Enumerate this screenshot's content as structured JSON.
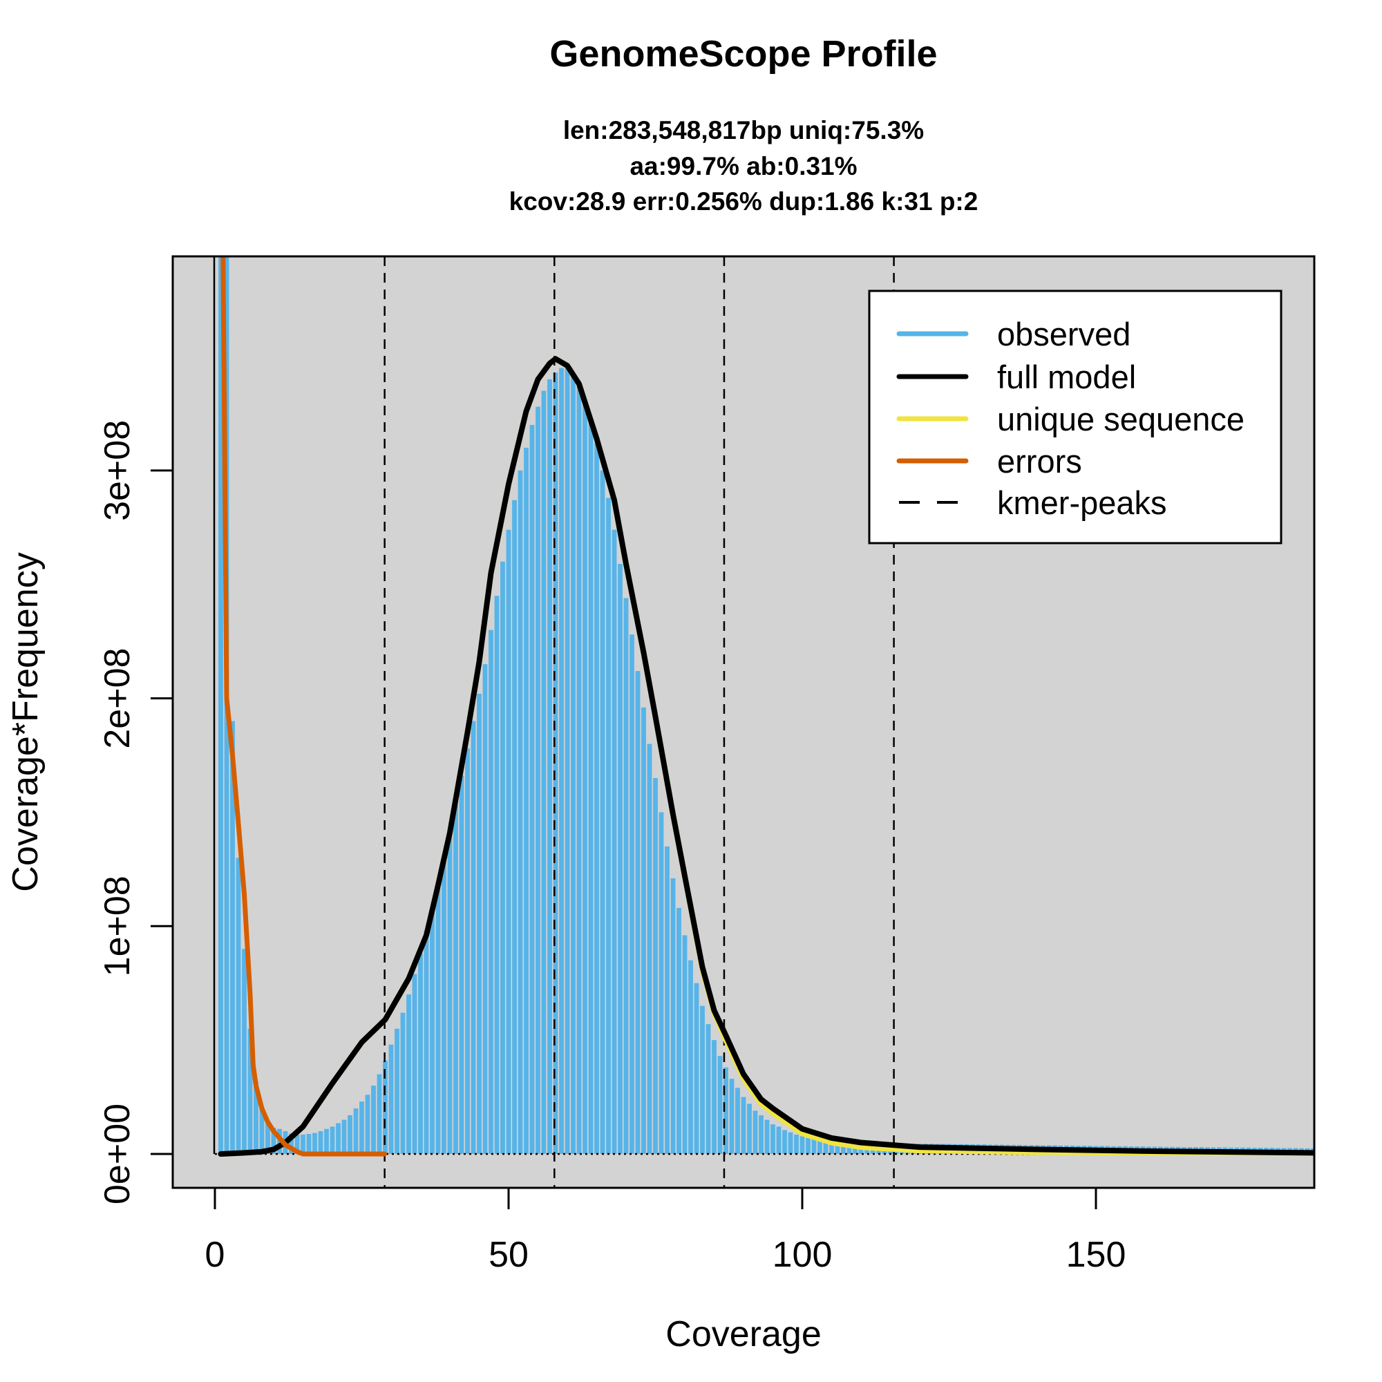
{
  "chart_data": {
    "type": "bar",
    "title": "GenomeScope Profile",
    "subtitle_lines": [
      "len:283,548,817bp uniq:75.3%",
      "aa:99.7% ab:0.31%",
      "kcov:28.9 err:0.256%  dup:1.86  k:31 p:2"
    ],
    "xlabel": "Coverage",
    "ylabel": "Coverage*Frequency",
    "xlim": [
      -7.2,
      187.2
    ],
    "ylim": [
      0,
      394000000
    ],
    "x_ticks": [
      0,
      50,
      100,
      150
    ],
    "x_tick_labels": [
      "0",
      "50",
      "100",
      "150"
    ],
    "y_ticks": [
      0,
      100000000,
      200000000,
      300000000
    ],
    "y_tick_labels": [
      "0e+00",
      "1e+08",
      "2e+08",
      "3e+08"
    ],
    "background": "#D3D3D3",
    "legend": {
      "placement": "top-right",
      "entries": [
        {
          "label": "observed",
          "color": "#56B4E9",
          "style": "solid"
        },
        {
          "label": "full model",
          "color": "#000000",
          "style": "solid"
        },
        {
          "label": "unique sequence",
          "color": "#F0E442",
          "style": "solid"
        },
        {
          "label": "errors",
          "color": "#D55E00",
          "style": "solid"
        },
        {
          "label": "kmer-peaks",
          "color": "#000000",
          "style": "dashed"
        }
      ]
    },
    "kmer_peaks": [
      28.9,
      57.8,
      86.7,
      115.6
    ],
    "observed": {
      "name": "observed",
      "unit": 100000000,
      "x_start": 1,
      "values": [
        12.0,
        4.5,
        1.9,
        1.3,
        0.9,
        0.55,
        0.32,
        0.2,
        0.14,
        0.115,
        0.11,
        0.1,
        0.09,
        0.085,
        0.085,
        0.088,
        0.092,
        0.1,
        0.11,
        0.12,
        0.135,
        0.15,
        0.17,
        0.2,
        0.23,
        0.26,
        0.3,
        0.35,
        0.41,
        0.48,
        0.55,
        0.62,
        0.7,
        0.79,
        0.88,
        0.98,
        1.08,
        1.19,
        1.3,
        1.42,
        1.54,
        1.66,
        1.78,
        1.9,
        2.02,
        2.15,
        2.3,
        2.45,
        2.6,
        2.74,
        2.87,
        3.0,
        3.1,
        3.2,
        3.28,
        3.35,
        3.4,
        3.43,
        3.45,
        3.45,
        3.42,
        3.37,
        3.3,
        3.22,
        3.12,
        3.0,
        2.88,
        2.74,
        2.59,
        2.44,
        2.28,
        2.12,
        1.96,
        1.8,
        1.65,
        1.5,
        1.35,
        1.21,
        1.08,
        0.96,
        0.85,
        0.75,
        0.65,
        0.57,
        0.5,
        0.43,
        0.38,
        0.33,
        0.29,
        0.25,
        0.22,
        0.19,
        0.17,
        0.15,
        0.13,
        0.12,
        0.105,
        0.095,
        0.085,
        0.078,
        0.07,
        0.065,
        0.06,
        0.056,
        0.053,
        0.051,
        0.05,
        0.05,
        0.049,
        0.049,
        0.048,
        0.048,
        0.047,
        0.047,
        0.047,
        0.046,
        0.046,
        0.046,
        0.045,
        0.045,
        0.045,
        0.045,
        0.044,
        0.044,
        0.044,
        0.043,
        0.043,
        0.043,
        0.042,
        0.042,
        0.042,
        0.041,
        0.041,
        0.041,
        0.04,
        0.04,
        0.04,
        0.039,
        0.039,
        0.039,
        0.038,
        0.038,
        0.038,
        0.037,
        0.037,
        0.037,
        0.036,
        0.036,
        0.036,
        0.035,
        0.035,
        0.035,
        0.034,
        0.034,
        0.034,
        0.033,
        0.033,
        0.033,
        0.032,
        0.032,
        0.032,
        0.031,
        0.031,
        0.031,
        0.03,
        0.03,
        0.03,
        0.03,
        0.029,
        0.029,
        0.029,
        0.029,
        0.028,
        0.028,
        0.028,
        0.028,
        0.027,
        0.027,
        0.027,
        0.027,
        0.026,
        0.026,
        0.026,
        0.026,
        0.025,
        0.025,
        0.025,
        0.025
      ]
    },
    "lines": [
      {
        "name": "unique sequence",
        "color": "#F0E442",
        "unit": 100000000,
        "x": [
          1,
          5,
          8,
          10,
          12,
          15,
          20,
          25,
          29,
          33,
          36,
          38,
          40,
          43,
          45,
          47,
          50,
          53,
          55,
          57,
          58,
          60,
          62,
          65,
          68,
          70,
          73,
          75,
          78,
          80,
          83,
          85,
          87,
          90,
          93,
          95,
          100,
          105,
          110,
          120,
          140,
          160,
          188
        ],
        "y": [
          0,
          0.005,
          0.01,
          0.02,
          0.05,
          0.12,
          0.31,
          0.49,
          0.59,
          0.77,
          0.96,
          1.18,
          1.41,
          1.85,
          2.16,
          2.55,
          2.94,
          3.26,
          3.4,
          3.47,
          3.49,
          3.46,
          3.38,
          3.14,
          2.87,
          2.59,
          2.2,
          1.92,
          1.49,
          1.22,
          0.81,
          0.62,
          0.5,
          0.33,
          0.22,
          0.18,
          0.09,
          0.05,
          0.03,
          0.015,
          0.008,
          0.005,
          0.003
        ]
      },
      {
        "name": "full model",
        "color": "#000000",
        "unit": 100000000,
        "x": [
          1,
          5,
          8,
          10,
          12,
          15,
          20,
          25,
          29,
          33,
          36,
          38,
          40,
          43,
          45,
          47,
          50,
          53,
          55,
          57,
          58,
          60,
          62,
          65,
          68,
          70,
          73,
          75,
          78,
          80,
          83,
          85,
          87,
          90,
          93,
          95,
          100,
          105,
          110,
          120,
          140,
          160,
          188
        ],
        "y": [
          0,
          0.005,
          0.01,
          0.02,
          0.05,
          0.12,
          0.31,
          0.49,
          0.59,
          0.77,
          0.96,
          1.18,
          1.41,
          1.85,
          2.16,
          2.55,
          2.94,
          3.26,
          3.4,
          3.47,
          3.49,
          3.46,
          3.38,
          3.14,
          2.87,
          2.59,
          2.2,
          1.92,
          1.49,
          1.22,
          0.82,
          0.63,
          0.52,
          0.35,
          0.24,
          0.2,
          0.11,
          0.07,
          0.05,
          0.03,
          0.02,
          0.012,
          0.005
        ]
      },
      {
        "name": "errors",
        "color": "#D55E00",
        "unit": 100000000,
        "x": [
          1.3,
          2,
          3,
          4,
          5,
          6,
          6.5,
          7,
          8,
          9,
          10,
          12,
          14,
          15,
          28.9
        ],
        "y": [
          4.2,
          2.0,
          1.75,
          1.45,
          1.14,
          0.7,
          0.39,
          0.3,
          0.2,
          0.14,
          0.1,
          0.04,
          0.01,
          0,
          0
        ]
      }
    ]
  }
}
